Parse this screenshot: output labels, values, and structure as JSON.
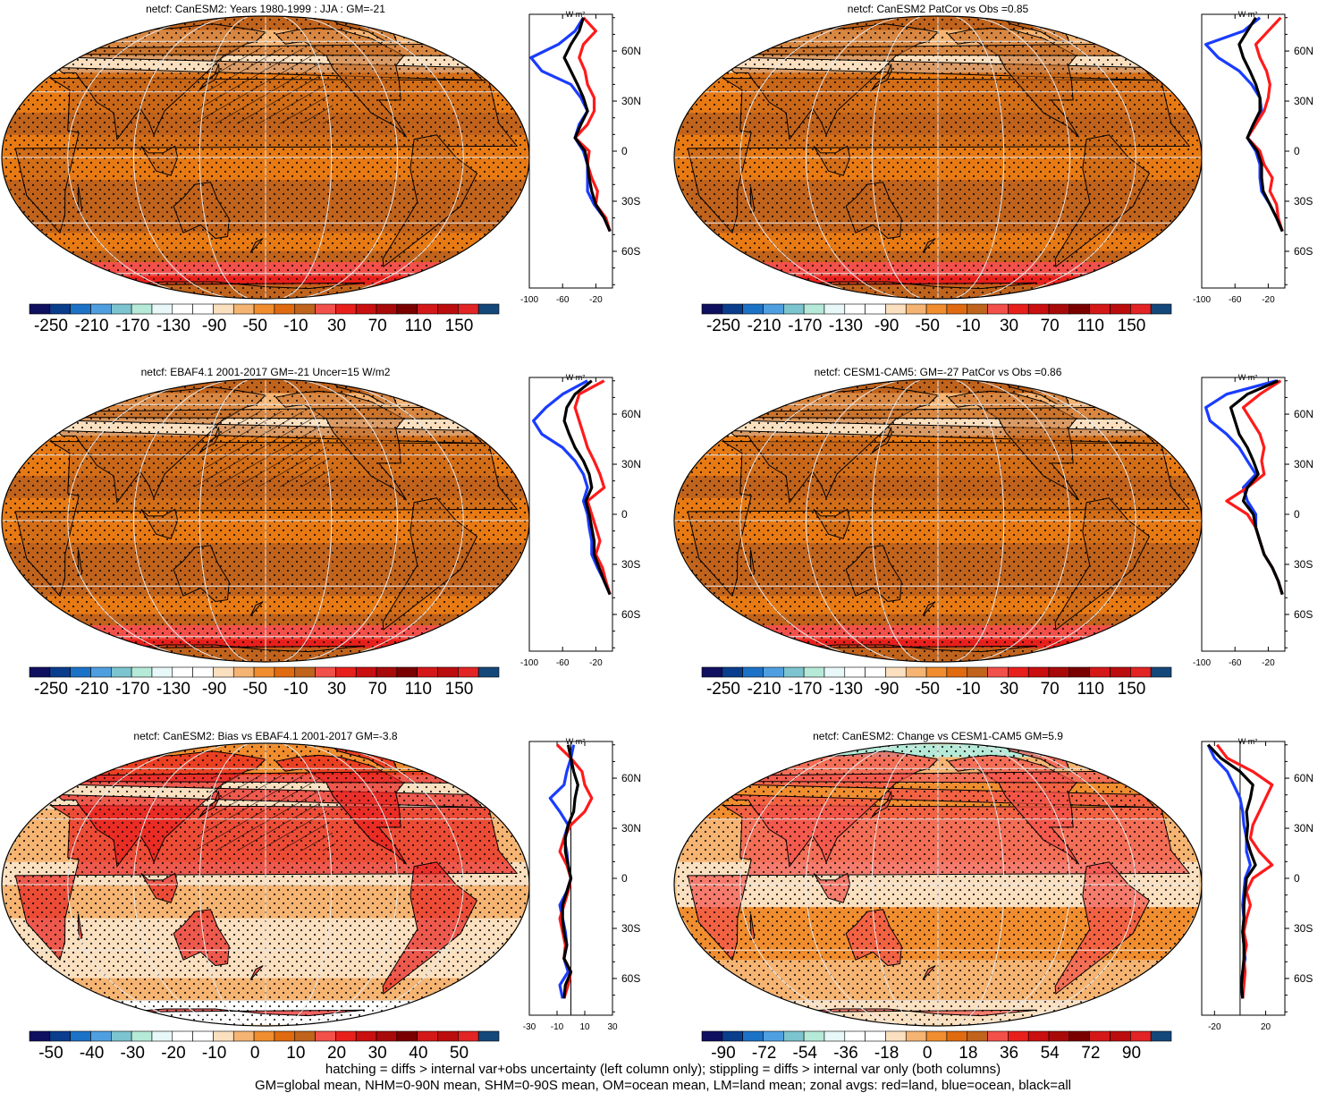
{
  "panels": [
    {
      "id": "p1",
      "title": "netcf: CanESM2: Years 1980-1999 : JJA : GM=-21",
      "palette": "warm",
      "hatching": true,
      "stippling": true,
      "colorbar_labels": [
        "-250",
        "-210",
        "-170",
        "-130",
        "-90",
        "-50",
        "-10",
        "30",
        "70",
        "110",
        "150"
      ],
      "zonal": {
        "units": "W m²",
        "x_ticks": [
          "-100",
          "-60",
          "-20"
        ],
        "y_ticks": [
          "60N",
          "30N",
          "0",
          "30S",
          "60S"
        ],
        "xlim": [
          -100,
          0
        ],
        "lat": [
          80,
          72,
          64,
          56,
          48,
          40,
          32,
          24,
          16,
          8,
          0,
          -8,
          -16,
          -24,
          -32,
          -40,
          -48
        ],
        "land": [
          -35,
          -20,
          -35,
          -40,
          -33,
          -30,
          -22,
          -22,
          -30,
          -45,
          -28,
          -30,
          -25,
          -18,
          -20,
          -8,
          -3
        ],
        "ocean": [
          -35,
          -45,
          -65,
          -98,
          -85,
          -50,
          -38,
          -30,
          -40,
          -45,
          -35,
          -30,
          -30,
          -30,
          -22,
          -10,
          -3
        ],
        "all": [
          -35,
          -40,
          -50,
          -58,
          -50,
          -42,
          -35,
          -30,
          -38,
          -45,
          -33,
          -30,
          -28,
          -25,
          -20,
          -10,
          -3
        ]
      }
    },
    {
      "id": "p2",
      "title": "netcf: CanESM2 PatCor vs Obs =0.85",
      "palette": "warm",
      "hatching": false,
      "stippling": true,
      "colorbar_labels": [
        "-250",
        "-210",
        "-170",
        "-130",
        "-90",
        "-50",
        "-10",
        "30",
        "70",
        "110",
        "150"
      ],
      "zonal": {
        "units": "W m²",
        "x_ticks": [
          "-100",
          "-60",
          "-20"
        ],
        "y_ticks": [
          "60N",
          "30N",
          "0",
          "30S",
          "60S"
        ],
        "xlim": [
          -100,
          0
        ],
        "lat": [
          80,
          72,
          64,
          56,
          48,
          40,
          32,
          24,
          16,
          8,
          0,
          -8,
          -16,
          -24,
          -32,
          -40,
          -48
        ],
        "land": [
          -5,
          -20,
          -35,
          -30,
          -22,
          -18,
          -20,
          -25,
          -35,
          -45,
          -30,
          -25,
          -15,
          -18,
          -10,
          -8,
          -3
        ],
        "ocean": [
          -30,
          -50,
          -95,
          -80,
          -55,
          -40,
          -30,
          -28,
          -38,
          -45,
          -35,
          -30,
          -30,
          -28,
          -18,
          -10,
          -3
        ],
        "all": [
          -35,
          -45,
          -55,
          -50,
          -42,
          -35,
          -30,
          -30,
          -38,
          -45,
          -33,
          -28,
          -28,
          -26,
          -18,
          -10,
          -3
        ]
      }
    },
    {
      "id": "p3",
      "title": "netcf: EBAF4.1 2001-2017 GM=-21 Uncer=15 W/m2",
      "palette": "warm",
      "hatching": true,
      "stippling": true,
      "colorbar_labels": [
        "-250",
        "-210",
        "-170",
        "-130",
        "-90",
        "-50",
        "-10",
        "30",
        "70",
        "110",
        "150"
      ],
      "zonal": {
        "units": "W m²",
        "x_ticks": [
          "-100",
          "-60",
          "-20"
        ],
        "y_ticks": [
          "60N",
          "30N",
          "0",
          "30S",
          "60S"
        ],
        "xlim": [
          -100,
          0
        ],
        "lat": [
          80,
          72,
          64,
          56,
          48,
          40,
          32,
          24,
          16,
          8,
          0,
          -8,
          -16,
          -24,
          -32,
          -40,
          -48
        ],
        "land": [
          -10,
          -40,
          -45,
          -40,
          -35,
          -30,
          -22,
          -15,
          -10,
          -30,
          -25,
          -20,
          -15,
          -20,
          -12,
          -8,
          -3
        ],
        "ocean": [
          -30,
          -60,
          -80,
          -95,
          -85,
          -60,
          -45,
          -35,
          -30,
          -35,
          -30,
          -28,
          -25,
          -25,
          -18,
          -10,
          -3
        ],
        "all": [
          -25,
          -45,
          -55,
          -58,
          -52,
          -45,
          -35,
          -28,
          -25,
          -32,
          -28,
          -25,
          -22,
          -22,
          -16,
          -10,
          -3
        ]
      }
    },
    {
      "id": "p4",
      "title": "netcf: CESM1-CAM5: GM=-27 PatCor vs Obs =0.86",
      "palette": "warm",
      "hatching": false,
      "stippling": true,
      "colorbar_labels": [
        "-250",
        "-210",
        "-170",
        "-130",
        "-90",
        "-50",
        "-10",
        "30",
        "70",
        "110",
        "150"
      ],
      "zonal": {
        "units": "W m²",
        "x_ticks": [
          "-100",
          "-60",
          "-20"
        ],
        "y_ticks": [
          "60N",
          "30N",
          "0",
          "30S",
          "60S"
        ],
        "xlim": [
          -100,
          0
        ],
        "lat": [
          80,
          72,
          64,
          56,
          48,
          40,
          32,
          24,
          16,
          8,
          0,
          -8,
          -16,
          -24,
          -32,
          -40,
          -48
        ],
        "land": [
          -5,
          -30,
          -50,
          -40,
          -30,
          -25,
          -28,
          -25,
          -45,
          -70,
          -45,
          -35,
          -30,
          -25,
          -15,
          -8,
          -3
        ],
        "ocean": [
          -10,
          -70,
          -95,
          -90,
          -70,
          -55,
          -45,
          -35,
          -50,
          -45,
          -35,
          -35,
          -30,
          -25,
          -15,
          -8,
          -3
        ],
        "all": [
          -8,
          -45,
          -65,
          -60,
          -55,
          -45,
          -38,
          -32,
          -45,
          -50,
          -38,
          -35,
          -30,
          -25,
          -15,
          -8,
          -3
        ]
      }
    },
    {
      "id": "p5",
      "title": "netcf: CanESM2: Bias vs EBAF4.1 2001-2017 GM=-3.8",
      "palette": "bias",
      "hatching": true,
      "stippling": true,
      "colorbar_labels": [
        "-50",
        "-40",
        "-30",
        "-20",
        "-10",
        "0",
        "10",
        "20",
        "30",
        "40",
        "50"
      ],
      "zonal": {
        "units": "W m²",
        "x_ticks": [
          "-30",
          "-10",
          "10",
          "30"
        ],
        "y_ticks": [
          "60N",
          "30N",
          "0",
          "30S",
          "60S"
        ],
        "xlim": [
          -30,
          30
        ],
        "lat": [
          80,
          72,
          64,
          56,
          48,
          40,
          32,
          24,
          16,
          8,
          0,
          -8,
          -16,
          -24,
          -32,
          -40,
          -48,
          -56,
          -64,
          -72
        ],
        "land": [
          -10,
          0,
          8,
          10,
          15,
          10,
          0,
          -5,
          -8,
          -3,
          0,
          -2,
          -5,
          -8,
          -6,
          -4,
          -5,
          0,
          -2,
          -5
        ],
        "ocean": [
          2,
          0,
          -3,
          -5,
          -15,
          -8,
          -2,
          -5,
          -3,
          -2,
          0,
          -3,
          -8,
          -6,
          -4,
          -3,
          -5,
          -2,
          -8,
          -6
        ],
        "all": [
          -2,
          0,
          2,
          5,
          3,
          2,
          -2,
          -4,
          -4,
          -2,
          0,
          -3,
          -6,
          -6,
          -5,
          -3,
          -5,
          0,
          -4,
          -5
        ]
      }
    },
    {
      "id": "p6",
      "title": "netcf: CanESM2: Change vs CESM1-CAM5 GM=5.9",
      "palette": "change",
      "hatching": false,
      "stippling": true,
      "colorbar_labels": [
        "-90",
        "-72",
        "-54",
        "-36",
        "-18",
        "0",
        "18",
        "36",
        "54",
        "72",
        "90"
      ],
      "zonal": {
        "units": "W m²",
        "x_ticks": [
          "-20",
          "20"
        ],
        "y_ticks": [
          "60N",
          "30N",
          "0",
          "30S",
          "60S"
        ],
        "xlim": [
          -30,
          35
        ],
        "lat": [
          80,
          72,
          64,
          56,
          48,
          40,
          32,
          24,
          16,
          8,
          0,
          -8,
          -16,
          -24,
          -32,
          -40,
          -48,
          -56,
          -64,
          -72
        ],
        "land": [
          -18,
          -10,
          10,
          25,
          20,
          15,
          10,
          8,
          15,
          25,
          10,
          5,
          8,
          5,
          3,
          5,
          3,
          4,
          3,
          2
        ],
        "ocean": [
          -25,
          -20,
          -10,
          -5,
          0,
          2,
          3,
          5,
          5,
          8,
          4,
          3,
          2,
          3,
          2,
          3,
          4,
          2,
          1,
          2
        ],
        "all": [
          -25,
          -15,
          0,
          10,
          8,
          5,
          6,
          5,
          8,
          12,
          5,
          4,
          3,
          3,
          2,
          3,
          3,
          2,
          1,
          2
        ]
      }
    }
  ],
  "footer": {
    "line1": "hatching = diffs > internal var+obs uncertainty (left column only); stippling = diffs > internal var only (both columns)",
    "line2": "GM=global mean, NHM=0-90N mean, SHM=0-90S mean, OM=ocean mean, LM=land mean; zonal avgs: red=land, blue=ocean, black=all"
  },
  "colors": {
    "land": "#ff1a1a",
    "ocean": "#1a3cff",
    "all": "#000000"
  }
}
